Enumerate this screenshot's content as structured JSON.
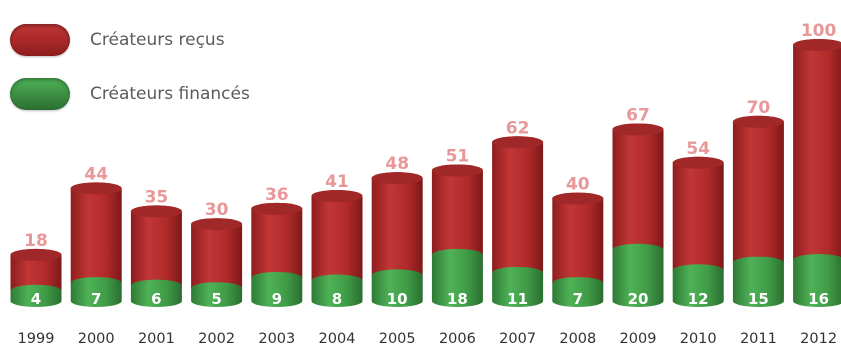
{
  "legend": {
    "received_label": "Créateurs reçus",
    "funded_label": "Créateurs financés"
  },
  "colors": {
    "received": "#b02a2a",
    "funded": "#3f9a46",
    "total_label": "#e89898",
    "funded_label": "#ffffff",
    "year_label": "#333333"
  },
  "chart_data": {
    "type": "bar",
    "categories": [
      "1999",
      "2000",
      "2001",
      "2002",
      "2003",
      "2004",
      "2005",
      "2006",
      "2007",
      "2008",
      "2009",
      "2010",
      "2011",
      "2012"
    ],
    "series": [
      {
        "name": "Créateurs reçus",
        "values": [
          18,
          44,
          35,
          30,
          36,
          41,
          48,
          51,
          62,
          40,
          67,
          54,
          70,
          100
        ]
      },
      {
        "name": "Créateurs financés",
        "values": [
          4,
          7,
          6,
          5,
          9,
          8,
          10,
          18,
          11,
          7,
          20,
          12,
          15,
          16
        ]
      }
    ],
    "ylim": [
      0,
      100
    ],
    "grid": false,
    "legend_position": "top-left"
  }
}
